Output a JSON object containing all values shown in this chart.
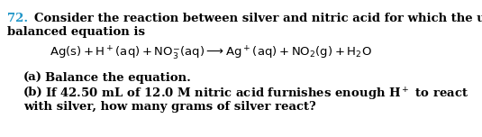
{
  "number": "72.",
  "number_color": "#2196c8",
  "bg_color": "#ffffff",
  "text_color": "#000000",
  "line1": "Consider the reaction between silver and nitric acid for which the un-",
  "line2": "balanced equation is",
  "equation_math": "$\\mathrm{Ag(s) + H^+(aq) + NO_3^{-}(aq) \\longrightarrow Ag^+(aq) + NO_2(g) + H_2O}$",
  "part_a_label": "(a)",
  "part_a_text": "Balance the equation.",
  "part_b_label": "(b)",
  "part_b_text1": "If 42.50 mL of 12.0 M nitric acid furnishes enough H$^+$ to react",
  "part_b_text2": "with silver, how many grams of silver react?",
  "fontsize": 9.5,
  "fontsize_eq": 9.5
}
